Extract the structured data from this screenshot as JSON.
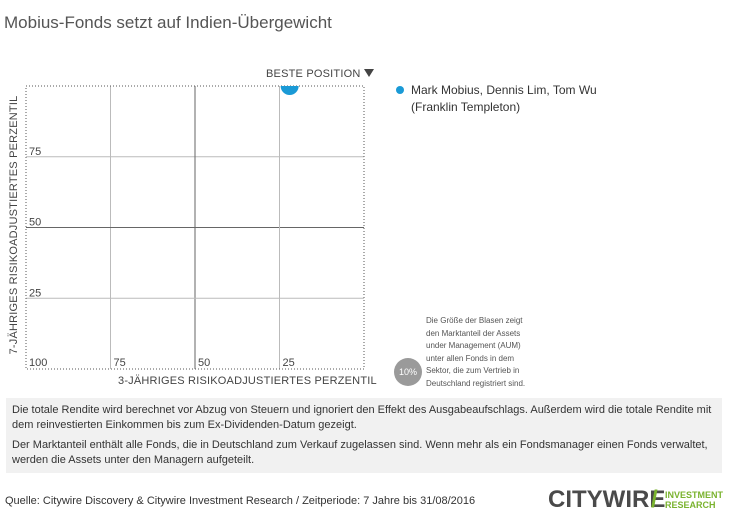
{
  "header": {
    "title": "Mobius-Fonds setzt auf Indien-Übergewicht"
  },
  "chart_data": {
    "type": "scatter",
    "xlabel": "3-JÄHRIGES RISIKOADJUSTIERTES PERZENTIL",
    "ylabel": "7-JÄHRIGES RISIKOADJUSTIERTES PERZENTIL",
    "corner_label": "BESTE POSITION",
    "xlim": [
      100,
      0
    ],
    "ylim": [
      100,
      0
    ],
    "grid": true,
    "x_ticks": [
      {
        "value": 100,
        "label": "100"
      },
      {
        "value": 75,
        "label": "75"
      },
      {
        "value": 50,
        "label": "50"
      },
      {
        "value": 25,
        "label": "25"
      }
    ],
    "y_ticks": [
      {
        "value": 25,
        "label": "25"
      },
      {
        "value": 50,
        "label": "50"
      },
      {
        "value": 75,
        "label": "75"
      }
    ],
    "legend_position": "top-right",
    "series": [
      {
        "name": "Mark Mobius, Dennis Lim, Tom Wu (Franklin Templeton)",
        "name_lines": [
          "Mark Mobius, Dennis Lim, Tom Wu",
          "(Franklin Templeton)"
        ],
        "color": "#1a9ad6",
        "points": [
          {
            "x": 22,
            "y": 100
          }
        ]
      }
    ],
    "size_legend": {
      "circle_label": "10%",
      "lines": [
        "Die Größe der Blasen zeigt",
        "den Marktanteil der Assets",
        "under Management (AUM)",
        "unter allen Fonds in dem",
        "Sektor, die zum Vertrieb in",
        "Deutschland registriert sind."
      ]
    }
  },
  "notes": {
    "paragraph1": "Die totale Rendite wird berechnet vor Abzug von Steuern und ignoriert den Effekt des Ausgabeaufschlags. Außerdem wird die totale Rendite mit dem reinvestierten Einkommen bis zum Ex-Dividenden-Datum gezeigt.",
    "paragraph2": "Der Marktanteil enthält alle Fonds, die in Deutschland zum Verkauf zugelassen sind. Wenn mehr als ein Fondsmanager einen Fonds verwaltet, werden die Assets unter den Managern aufgeteilt."
  },
  "footer": {
    "source": "Quelle: Citywire Discovery & Citywire Investment Research / Zeitperiode: 7 Jahre bis 31/08/2016"
  },
  "logo": {
    "word": "CITYWIRE",
    "slash": "/",
    "sub_line1": "INVESTMENT",
    "sub_line2": "RESEARCH",
    "colors": {
      "word": "#4a4a4a",
      "accent": "#7ab32e"
    }
  }
}
